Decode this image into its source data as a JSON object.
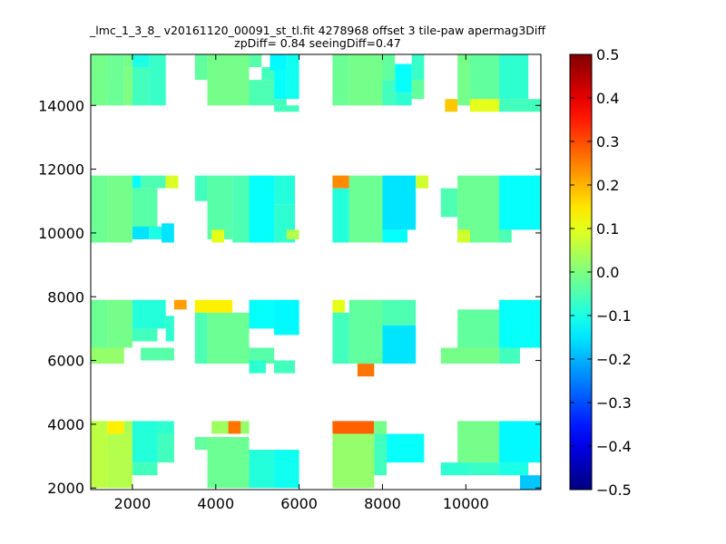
{
  "chart_data": {
    "type": "heatmap",
    "title": "_lmc_1_3_8_ v20161120_00091_st_tl.fit 4278968 offset 3 tile-paw apermag3Diff",
    "subtitle": "zpDiff= 0.84 seeingDiff=0.47",
    "xlabel": "",
    "ylabel": "",
    "xlim": [
      1000,
      11800
    ],
    "ylim": [
      1950,
      15600
    ],
    "x_ticks": [
      2000,
      4000,
      6000,
      8000,
      10000
    ],
    "y_ticks": [
      2000,
      4000,
      6000,
      8000,
      10000,
      12000,
      14000
    ],
    "grid": false,
    "colorbar": {
      "colormap": "jet",
      "vmin": -0.5,
      "vmax": 0.5,
      "ticks": [
        "0.5",
        "0.4",
        "0.3",
        "0.2",
        "0.1",
        "0.0",
        "−0.1",
        "−0.2",
        "−0.3",
        "−0.4",
        "−0.5"
      ],
      "tick_values": [
        0.5,
        0.4,
        0.3,
        0.2,
        0.1,
        0.0,
        -0.1,
        -0.2,
        -0.3,
        -0.4,
        -0.5
      ]
    },
    "cells": [
      [
        1000,
        14000,
        1400,
        15600,
        -0.01
      ],
      [
        1400,
        14000,
        1800,
        15600,
        -0.02
      ],
      [
        1800,
        14000,
        2000,
        15200,
        0.0
      ],
      [
        1800,
        15200,
        2000,
        15600,
        -0.01
      ],
      [
        2000,
        15200,
        2400,
        15600,
        -0.1
      ],
      [
        2000,
        14000,
        2400,
        15200,
        -0.06
      ],
      [
        2400,
        14000,
        2800,
        15600,
        -0.07
      ],
      [
        3500,
        14800,
        3800,
        15600,
        -0.03
      ],
      [
        3800,
        14000,
        4800,
        15600,
        -0.01
      ],
      [
        4800,
        15200,
        5100,
        15600,
        -0.04
      ],
      [
        4800,
        14000,
        5400,
        14800,
        -0.05
      ],
      [
        5100,
        14800,
        5400,
        15200,
        -0.06
      ],
      [
        5300,
        15100,
        5700,
        15600,
        -0.13
      ],
      [
        5400,
        14200,
        5700,
        15100,
        -0.12
      ],
      [
        5400,
        14000,
        5700,
        14200,
        -0.06
      ],
      [
        5700,
        14200,
        6000,
        15600,
        -0.11
      ],
      [
        5400,
        13800,
        6000,
        14000,
        -0.06
      ],
      [
        6800,
        14000,
        7200,
        15600,
        -0.02
      ],
      [
        7200,
        14000,
        8000,
        15600,
        -0.01
      ],
      [
        8000,
        14800,
        8300,
        15600,
        -0.03
      ],
      [
        8000,
        14000,
        8300,
        14800,
        -0.06
      ],
      [
        8300,
        14400,
        8700,
        15300,
        -0.12
      ],
      [
        8300,
        14000,
        8700,
        14400,
        -0.08
      ],
      [
        8700,
        14800,
        9000,
        15600,
        -0.07
      ],
      [
        8700,
        14200,
        9000,
        14800,
        -0.03
      ],
      [
        9500,
        13800,
        9800,
        14200,
        0.18
      ],
      [
        9800,
        14000,
        10100,
        15600,
        -0.01
      ],
      [
        10100,
        14200,
        10800,
        15600,
        -0.03
      ],
      [
        10100,
        13800,
        10800,
        14200,
        0.1
      ],
      [
        10800,
        14200,
        11500,
        15600,
        -0.08
      ],
      [
        10800,
        13800,
        11800,
        14200,
        -0.06
      ],
      [
        1000,
        9700,
        1400,
        11800,
        -0.02
      ],
      [
        1400,
        9700,
        2000,
        11800,
        -0.01
      ],
      [
        2000,
        11400,
        2200,
        11800,
        -0.12
      ],
      [
        2200,
        11400,
        2800,
        11800,
        -0.05
      ],
      [
        2800,
        11400,
        3100,
        11800,
        0.09
      ],
      [
        2000,
        10000,
        2600,
        11400,
        -0.04
      ],
      [
        2000,
        9800,
        2400,
        10200,
        -0.15
      ],
      [
        2400,
        9800,
        2700,
        10200,
        -0.1
      ],
      [
        2700,
        9700,
        3000,
        10300,
        -0.15
      ],
      [
        3500,
        11000,
        3800,
        11800,
        -0.06
      ],
      [
        3800,
        9800,
        4400,
        11800,
        -0.04
      ],
      [
        3900,
        9700,
        4200,
        10100,
        0.1
      ],
      [
        4400,
        9700,
        4800,
        11800,
        -0.05
      ],
      [
        4800,
        9700,
        5400,
        11800,
        -0.12
      ],
      [
        5400,
        10900,
        5900,
        11800,
        -0.09
      ],
      [
        5400,
        9700,
        5900,
        10900,
        -0.08
      ],
      [
        5700,
        9800,
        6000,
        10100,
        0.05
      ],
      [
        6800,
        11400,
        7200,
        11800,
        0.24
      ],
      [
        6800,
        9700,
        7200,
        11400,
        -0.09
      ],
      [
        7200,
        9700,
        8000,
        11800,
        -0.02
      ],
      [
        8000,
        10100,
        8800,
        11800,
        -0.15
      ],
      [
        8000,
        9700,
        8600,
        10100,
        -0.12
      ],
      [
        8800,
        11400,
        9100,
        11800,
        0.08
      ],
      [
        9400,
        10500,
        9800,
        11400,
        -0.05
      ],
      [
        9800,
        9700,
        10800,
        11800,
        -0.02
      ],
      [
        9800,
        9700,
        10100,
        10100,
        0.08
      ],
      [
        10800,
        10100,
        11800,
        11800,
        -0.12
      ],
      [
        10800,
        9700,
        11100,
        10100,
        -0.05
      ],
      [
        1000,
        6400,
        1400,
        7900,
        -0.02
      ],
      [
        1400,
        6400,
        2000,
        7900,
        -0.01
      ],
      [
        1000,
        5900,
        1800,
        6400,
        0.02
      ],
      [
        2000,
        7000,
        2800,
        7900,
        -0.09
      ],
      [
        2000,
        6600,
        2600,
        7000,
        -0.06
      ],
      [
        2200,
        6000,
        3000,
        6400,
        -0.04
      ],
      [
        2800,
        6600,
        3000,
        7400,
        -0.08
      ],
      [
        3000,
        7600,
        3300,
        7900,
        0.22
      ],
      [
        3500,
        7500,
        4400,
        7900,
        0.14
      ],
      [
        3500,
        5900,
        3800,
        7500,
        -0.05
      ],
      [
        3800,
        5900,
        4800,
        7500,
        -0.02
      ],
      [
        4800,
        7000,
        5400,
        7900,
        -0.12
      ],
      [
        5400,
        6800,
        6000,
        7900,
        -0.13
      ],
      [
        4800,
        5900,
        5400,
        6400,
        -0.04
      ],
      [
        4800,
        5600,
        5200,
        6000,
        -0.08
      ],
      [
        5400,
        5600,
        5900,
        6000,
        -0.06
      ],
      [
        6800,
        7500,
        7100,
        7900,
        0.1
      ],
      [
        6800,
        5900,
        7200,
        7500,
        -0.06
      ],
      [
        7200,
        5900,
        8000,
        7900,
        -0.03
      ],
      [
        8000,
        5900,
        8800,
        7100,
        -0.15
      ],
      [
        8000,
        7100,
        8800,
        7900,
        -0.05
      ],
      [
        7400,
        5500,
        7800,
        5900,
        0.26
      ],
      [
        9800,
        6400,
        10800,
        7600,
        -0.03
      ],
      [
        9400,
        5900,
        10800,
        6400,
        -0.01
      ],
      [
        10800,
        6400,
        11800,
        7900,
        -0.12
      ],
      [
        10800,
        5900,
        11300,
        6400,
        -0.06
      ],
      [
        1000,
        2000,
        1400,
        4100,
        0.06
      ],
      [
        1400,
        3700,
        1800,
        4100,
        0.14
      ],
      [
        1400,
        2000,
        2000,
        3700,
        0.05
      ],
      [
        1800,
        3700,
        2000,
        4100,
        0.04
      ],
      [
        2000,
        2800,
        2600,
        4100,
        -0.09
      ],
      [
        2600,
        2800,
        3000,
        3700,
        -0.06
      ],
      [
        2000,
        2400,
        2600,
        2800,
        -0.06
      ],
      [
        2600,
        3700,
        3000,
        4100,
        -0.08
      ],
      [
        3900,
        3700,
        4300,
        4100,
        0.03
      ],
      [
        4300,
        3700,
        4600,
        4100,
        0.26
      ],
      [
        4600,
        3700,
        4800,
        4100,
        0.02
      ],
      [
        3500,
        3200,
        3800,
        3600,
        -0.03
      ],
      [
        3800,
        2000,
        4800,
        3600,
        -0.02
      ],
      [
        4800,
        2000,
        5400,
        3200,
        -0.09
      ],
      [
        5400,
        2000,
        6000,
        3200,
        -0.11
      ],
      [
        6800,
        3700,
        7800,
        4100,
        0.28
      ],
      [
        7800,
        3700,
        8100,
        4100,
        -0.01
      ],
      [
        6800,
        2000,
        7800,
        3700,
        0.02
      ],
      [
        7800,
        2400,
        8100,
        3700,
        -0.06
      ],
      [
        8100,
        2800,
        9000,
        3700,
        -0.12
      ],
      [
        9400,
        2400,
        10100,
        2800,
        -0.08
      ],
      [
        9800,
        2800,
        10800,
        4100,
        -0.01
      ],
      [
        10100,
        2400,
        10800,
        2800,
        -0.07
      ],
      [
        10800,
        2800,
        11800,
        4100,
        -0.13
      ],
      [
        10800,
        2400,
        11500,
        2800,
        -0.1
      ],
      [
        11300,
        1950,
        11800,
        2400,
        -0.18
      ]
    ]
  }
}
